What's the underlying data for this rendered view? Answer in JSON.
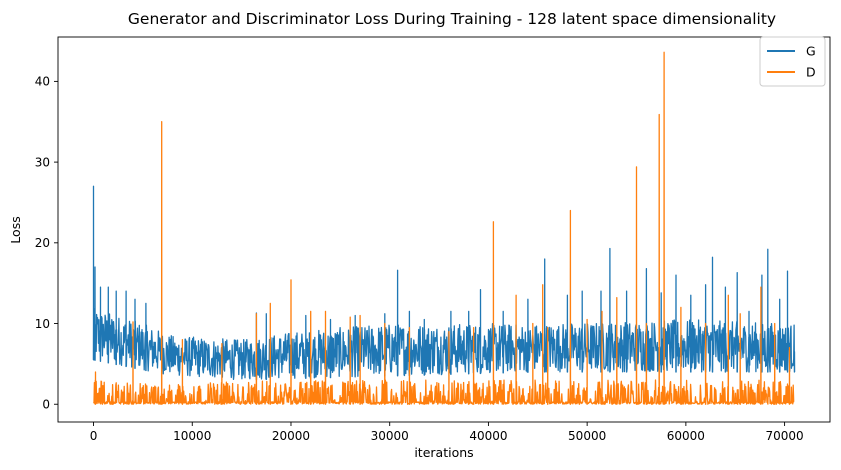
{
  "chart_data": {
    "type": "line",
    "title": "Generator and Discriminator Loss During Training - 128 latent space dimensionality",
    "xlabel": "iterations",
    "ylabel": "Loss",
    "xlim": [
      -3600,
      74600
    ],
    "ylim": [
      -2.2,
      45.5
    ],
    "xticks": [
      0,
      10000,
      20000,
      30000,
      40000,
      50000,
      60000,
      70000
    ],
    "yticks": [
      0,
      10,
      20,
      30,
      40
    ],
    "grid": false,
    "legend_position": "top-right",
    "series": [
      {
        "name": "G",
        "color": "#1f77b4",
        "baseline_band_low": [
          [
            0,
            5.5
          ],
          [
            8000,
            3.5
          ],
          [
            15000,
            3
          ],
          [
            30000,
            3.5
          ],
          [
            45000,
            4
          ],
          [
            60000,
            4
          ],
          [
            71000,
            4
          ]
        ],
        "baseline_band_high": [
          [
            0,
            12
          ],
          [
            5000,
            10
          ],
          [
            8000,
            8.5
          ],
          [
            15000,
            8
          ],
          [
            20000,
            9
          ],
          [
            30000,
            10
          ],
          [
            45000,
            10
          ],
          [
            60000,
            10.5
          ],
          [
            71000,
            10
          ]
        ],
        "spikes": [
          [
            0,
            27
          ],
          [
            150,
            17
          ],
          [
            700,
            14.5
          ],
          [
            1500,
            14.5
          ],
          [
            2300,
            14
          ],
          [
            3300,
            14
          ],
          [
            4200,
            13
          ],
          [
            5300,
            12.5
          ],
          [
            16500,
            11.3
          ],
          [
            17500,
            11.2
          ],
          [
            21500,
            11
          ],
          [
            24000,
            10.5
          ],
          [
            26500,
            11
          ],
          [
            29500,
            11.2
          ],
          [
            30800,
            16.6
          ],
          [
            32000,
            11.5
          ],
          [
            33500,
            10.5
          ],
          [
            36200,
            11.5
          ],
          [
            38000,
            11.5
          ],
          [
            39200,
            14.2
          ],
          [
            41500,
            11.5
          ],
          [
            44000,
            13
          ],
          [
            45700,
            18
          ],
          [
            48000,
            13.5
          ],
          [
            49500,
            14
          ],
          [
            51400,
            14
          ],
          [
            52300,
            19.3
          ],
          [
            54000,
            14
          ],
          [
            56000,
            16.8
          ],
          [
            57500,
            13.8
          ],
          [
            59000,
            16
          ],
          [
            60500,
            13.5
          ],
          [
            62000,
            14.8
          ],
          [
            62700,
            18.2
          ],
          [
            64000,
            14.5
          ],
          [
            65200,
            16.3
          ],
          [
            66400,
            11.5
          ],
          [
            67700,
            16
          ],
          [
            68300,
            19.2
          ],
          [
            69500,
            13
          ],
          [
            70300,
            16.5
          ],
          [
            71000,
            6.5
          ]
        ]
      },
      {
        "name": "D",
        "color": "#ff7f0e",
        "baseline_band_low": [
          [
            0,
            0
          ],
          [
            71000,
            0
          ]
        ],
        "baseline_band_high": [
          [
            0,
            3
          ],
          [
            8000,
            2.5
          ],
          [
            20000,
            3
          ],
          [
            40000,
            3
          ],
          [
            71000,
            3
          ]
        ],
        "spikes": [
          [
            200,
            4
          ],
          [
            4000,
            10.2
          ],
          [
            6900,
            35
          ],
          [
            9000,
            8
          ],
          [
            13000,
            7.5
          ],
          [
            16500,
            11.2
          ],
          [
            17900,
            12.5
          ],
          [
            20000,
            15.4
          ],
          [
            22000,
            11.5
          ],
          [
            23500,
            11.5
          ],
          [
            26000,
            10.8
          ],
          [
            27000,
            11
          ],
          [
            29500,
            10
          ],
          [
            32000,
            9.5
          ],
          [
            36000,
            9
          ],
          [
            38500,
            9.5
          ],
          [
            40500,
            22.6
          ],
          [
            42800,
            13.5
          ],
          [
            44500,
            10
          ],
          [
            45500,
            14.8
          ],
          [
            46000,
            9.5
          ],
          [
            48300,
            24
          ],
          [
            50000,
            10.5
          ],
          [
            51500,
            11.5
          ],
          [
            53000,
            13.2
          ],
          [
            55000,
            29.4
          ],
          [
            56000,
            10
          ],
          [
            57300,
            35.9
          ],
          [
            57800,
            43.6
          ],
          [
            59500,
            12
          ],
          [
            62000,
            10
          ],
          [
            64300,
            13.5
          ],
          [
            65500,
            11.2
          ],
          [
            67600,
            14.5
          ],
          [
            69000,
            10
          ],
          [
            70500,
            7
          ]
        ]
      }
    ]
  }
}
